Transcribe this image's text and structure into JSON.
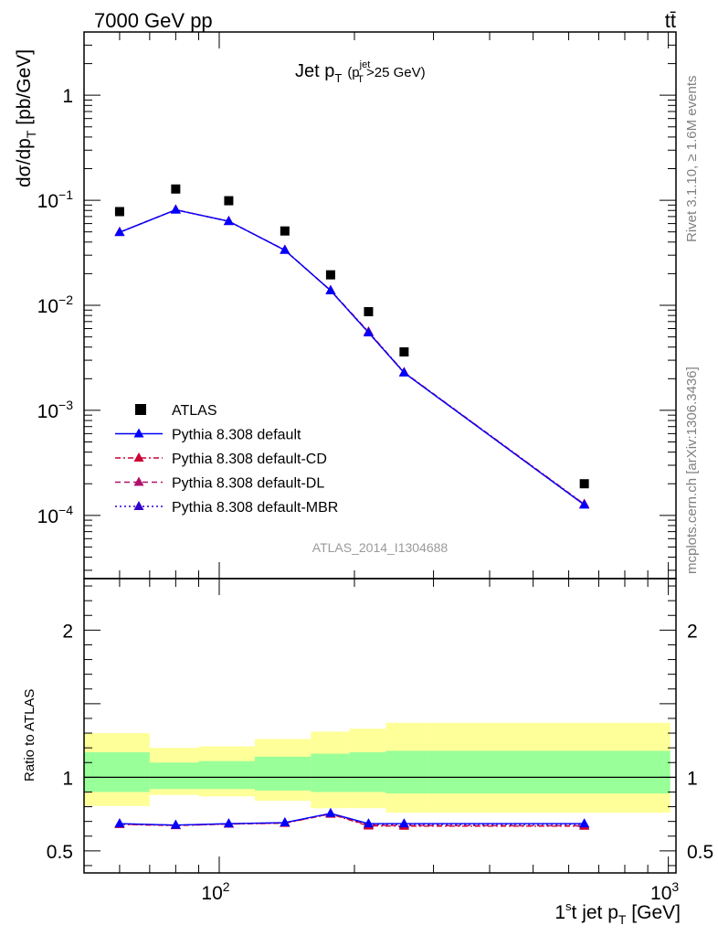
{
  "header": {
    "left": "7000 GeV pp",
    "right": "tt̄"
  },
  "side": {
    "rivet": "Rivet 3.1.10, ≥ 1.6M events",
    "mcplots": "mcplots.cern.ch [arXiv:1306.3436]"
  },
  "chart_data": [
    {
      "type": "scatter",
      "title": "Jet p_T (p_T^jet>25 GeV)",
      "title_main": "Jet p",
      "title_sub_T": "T",
      "title_paren_open": "(p",
      "title_sup_jet": "jet",
      "title_sub_T2": "T",
      "title_rest": ">25 GeV)",
      "ylabel": "dσ/dp_T [pb/GeV]",
      "ylabel_main": "dσ/dp",
      "ylabel_sub": "T",
      "ylabel_unit": " [pb/GeV]",
      "yscale": "log",
      "ylim": [
        2.5e-05,
        4
      ],
      "xscale": "log",
      "xlim": [
        50,
        1040
      ],
      "yticks": [
        {
          "v": 1,
          "base": "1",
          "exp": ""
        },
        {
          "v": 0.1,
          "base": "10",
          "exp": "−1"
        },
        {
          "v": 0.01,
          "base": "10",
          "exp": "−2"
        },
        {
          "v": 0.001,
          "base": "10",
          "exp": "−3"
        },
        {
          "v": 0.0001,
          "base": "10",
          "exp": "−4"
        }
      ],
      "watermark": "ATLAS_2014_I1304688",
      "legend_position": "lower-left",
      "x": [
        60,
        80,
        105,
        140,
        177,
        215,
        258,
        650
      ],
      "x_edges": [
        [
          50,
          70
        ],
        [
          70,
          90
        ],
        [
          90,
          120
        ],
        [
          120,
          160
        ],
        [
          160,
          195
        ],
        [
          195,
          235
        ],
        [
          235,
          290
        ],
        [
          290,
          1010
        ]
      ],
      "series": [
        {
          "name": "ATLAS",
          "color": "#000000",
          "marker": "square",
          "values": [
            0.078,
            0.128,
            0.099,
            0.051,
            0.0195,
            0.0087,
            0.0036,
            0.0002
          ]
        },
        {
          "name": "Pythia 8.308 default",
          "color": "#0000ff",
          "marker": "triangle",
          "linestyle": "solid",
          "values": [
            0.0495,
            0.081,
            0.063,
            0.0335,
            0.0138,
            0.0055,
            0.00228,
            0.000126
          ]
        },
        {
          "name": "Pythia 8.308 default-CD",
          "color": "#cc0033",
          "marker": "triangle",
          "linestyle": "dashdot",
          "values": [
            0.0497,
            0.0812,
            0.0632,
            0.0336,
            0.0139,
            0.0056,
            0.0023,
            0.000128
          ]
        },
        {
          "name": "Pythia 8.308 default-DL",
          "color": "#b0106a",
          "marker": "triangle",
          "linestyle": "dashed",
          "values": [
            0.0496,
            0.0811,
            0.0631,
            0.0335,
            0.0138,
            0.0055,
            0.00229,
            0.000127
          ]
        },
        {
          "name": "Pythia 8.308 default-MBR",
          "color": "#3300cc",
          "marker": "triangle",
          "linestyle": "dotted",
          "values": [
            0.0495,
            0.081,
            0.063,
            0.0335,
            0.0138,
            0.0055,
            0.00228,
            0.000126
          ]
        }
      ]
    },
    {
      "type": "line",
      "ylabel": "Ratio to ATLAS",
      "ylim": [
        0.35,
        2.35
      ],
      "yticks": [
        {
          "v": 0.5,
          "label": "0.5"
        },
        {
          "v": 1,
          "label": "1"
        },
        {
          "v": 2,
          "label": "2"
        }
      ],
      "xlabel": "1st jet p_T [GeV]",
      "xlabel_one": "1",
      "xlabel_sup": "s",
      "xlabel_rest": "t jet p",
      "xlabel_sub": "T",
      "xlabel_unit": " [GeV]",
      "xticks": [
        {
          "v": 100,
          "base": "10",
          "exp": "2"
        },
        {
          "v": 1000,
          "base": "10",
          "exp": "3"
        }
      ],
      "x": [
        60,
        80,
        105,
        140,
        177,
        215,
        258,
        650
      ],
      "band_yellow": [
        [
          0.805,
          1.3
        ],
        [
          0.88,
          1.2
        ],
        [
          0.87,
          1.21
        ],
        [
          0.84,
          1.26
        ],
        [
          0.79,
          1.31
        ],
        [
          0.79,
          1.33
        ],
        [
          0.76,
          1.37
        ],
        [
          0.76,
          1.37
        ]
      ],
      "band_green": [
        [
          0.9,
          1.17
        ],
        [
          0.92,
          1.1
        ],
        [
          0.92,
          1.11
        ],
        [
          0.91,
          1.14
        ],
        [
          0.9,
          1.16
        ],
        [
          0.9,
          1.17
        ],
        [
          0.89,
          1.18
        ],
        [
          0.89,
          1.18
        ]
      ],
      "band_colors": {
        "yellow": "#ffff99",
        "green": "#99ff99"
      },
      "series": [
        {
          "name": "Pythia 8.308 default",
          "color": "#0000ff",
          "linestyle": "solid",
          "values": [
            0.685,
            0.675,
            0.685,
            0.692,
            0.755,
            0.685,
            0.685,
            0.685
          ]
        },
        {
          "name": "Pythia 8.308 default-CD",
          "color": "#cc0033",
          "linestyle": "dashdot",
          "values": [
            0.68,
            0.672,
            0.682,
            0.688,
            0.75,
            0.67,
            0.668,
            0.668
          ]
        },
        {
          "name": "Pythia 8.308 default-DL",
          "color": "#b0106a",
          "linestyle": "dashed",
          "values": [
            0.682,
            0.673,
            0.683,
            0.69,
            0.752,
            0.675,
            0.672,
            0.67
          ]
        },
        {
          "name": "Pythia 8.308 default-MBR",
          "color": "#3300cc",
          "linestyle": "dotted",
          "values": [
            0.684,
            0.675,
            0.684,
            0.691,
            0.754,
            0.68,
            0.68,
            0.68
          ]
        }
      ]
    }
  ]
}
